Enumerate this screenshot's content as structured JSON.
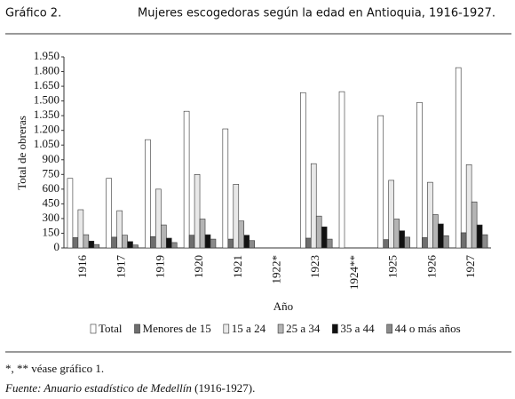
{
  "figure_label": "Gráfico 2.",
  "chart_data": {
    "type": "bar",
    "title": "Mujeres escogedoras según la edad en Antioquia, 1916-1927.",
    "x_label": "Año",
    "y_label": "Total de obreras",
    "categories": [
      "1916",
      "1917",
      "1919",
      "1920",
      "1921",
      "1922*",
      "1923",
      "1924**",
      "1925",
      "1926",
      "1927"
    ],
    "series": [
      {
        "name": "Total",
        "color": "#ffffff",
        "values": [
          710,
          710,
          1105,
          1395,
          1215,
          null,
          1585,
          1595,
          1350,
          1485,
          1840
        ]
      },
      {
        "name": "Menores de 15",
        "color": "#6e6e6e",
        "values": [
          105,
          110,
          115,
          130,
          90,
          null,
          100,
          null,
          85,
          105,
          155
        ]
      },
      {
        "name": "15 a 24",
        "color": "#e8e8e8",
        "values": [
          390,
          380,
          600,
          750,
          650,
          null,
          860,
          null,
          690,
          670,
          850
        ]
      },
      {
        "name": "25 a 34",
        "color": "#b4b4b4",
        "values": [
          135,
          130,
          235,
          295,
          275,
          null,
          325,
          null,
          295,
          340,
          470
        ]
      },
      {
        "name": "35 a 44",
        "color": "#111111",
        "values": [
          70,
          65,
          100,
          135,
          130,
          null,
          215,
          null,
          175,
          245,
          235
        ]
      },
      {
        "name": "44 o más años",
        "color": "#8a8a8a",
        "values": [
          35,
          30,
          55,
          90,
          75,
          null,
          90,
          null,
          110,
          125,
          135
        ]
      }
    ],
    "ylim": [
      0,
      1950
    ],
    "yticks": [
      0,
      150,
      300,
      450,
      600,
      750,
      900,
      {
        "value": 1050,
        "label": "1.050"
      },
      {
        "value": 1200,
        "label": "1.200"
      },
      {
        "value": 1350,
        "label": "1.350"
      },
      {
        "value": 1500,
        "label": "1.500"
      },
      {
        "value": 1650,
        "label": "1.650"
      },
      {
        "value": 1800,
        "label": "1.800"
      },
      {
        "value": 1950,
        "label": "1.950"
      }
    ],
    "grid": false,
    "legend": "bottom"
  },
  "notes": "*, ** véase gráfico 1.",
  "source": {
    "text": "Fuente: Anuario estadístico de Medellín",
    "years": "(1916-1927)."
  }
}
